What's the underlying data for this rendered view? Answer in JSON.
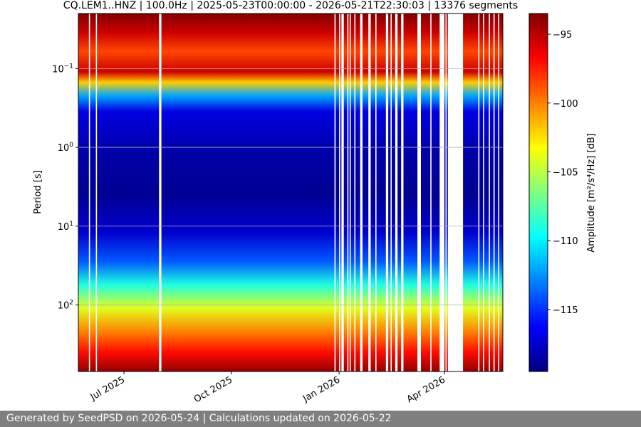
{
  "chart_data": {
    "type": "heatmap",
    "title": "CQ.LEM1..HNZ | 100.0Hz | 2025-05-23T00:00:00 - 2026-05-21T22:30:03 | 13376 segments",
    "ylabel": "Period [s]",
    "y_scale": "log",
    "y_inverted": true,
    "ylim": [
      0.02,
      700
    ],
    "y_ticks": [
      {
        "value": 0.1,
        "base": "10",
        "exp": "−1"
      },
      {
        "value": 1,
        "base": "10",
        "exp": "0"
      },
      {
        "value": 10,
        "base": "10",
        "exp": "1"
      },
      {
        "value": 100,
        "base": "10",
        "exp": "2"
      }
    ],
    "xlim": [
      "2025-05-23",
      "2026-05-21"
    ],
    "x_ticks": [
      {
        "date": "2025-07-01",
        "label": "Jul 2025"
      },
      {
        "date": "2025-10-01",
        "label": "Oct 2025"
      },
      {
        "date": "2026-01-01",
        "label": "Jan 2026"
      },
      {
        "date": "2026-04-01",
        "label": "Apr 2026"
      }
    ],
    "grid": true,
    "colorbar": {
      "label": "Amplitude [m²/s⁴/Hz] [dB]",
      "range": [
        -119.5,
        -93.5
      ],
      "colormap": "jet",
      "ticks": [
        {
          "value": -95,
          "label": "−95"
        },
        {
          "value": -100,
          "label": "−100"
        },
        {
          "value": -105,
          "label": "−105"
        },
        {
          "value": -110,
          "label": "−110"
        },
        {
          "value": -115,
          "label": "−115"
        }
      ]
    },
    "amplitude_profile": [
      {
        "period": 0.02,
        "db": -93.5
      },
      {
        "period": 0.035,
        "db": -95.5
      },
      {
        "period": 0.06,
        "db": -98.5
      },
      {
        "period": 0.11,
        "db": -95.5
      },
      {
        "period": 0.15,
        "db": -102
      },
      {
        "period": 0.22,
        "db": -112
      },
      {
        "period": 0.35,
        "db": -117
      },
      {
        "period": 1.2,
        "db": -118.5
      },
      {
        "period": 4,
        "db": -119
      },
      {
        "period": 12,
        "db": -117.5
      },
      {
        "period": 28,
        "db": -114
      },
      {
        "period": 55,
        "db": -109
      },
      {
        "period": 110,
        "db": -104
      },
      {
        "period": 220,
        "db": -100
      },
      {
        "period": 400,
        "db": -97
      },
      {
        "period": 700,
        "db": -94
      }
    ],
    "data_gaps": [
      {
        "start": "2025-06-01",
        "end": "2025-06-02"
      },
      {
        "start": "2025-06-07",
        "end": "2025-06-08"
      },
      {
        "start": "2025-07-31",
        "end": "2025-08-02"
      },
      {
        "start": "2025-12-28",
        "end": "2025-12-29"
      },
      {
        "start": "2026-01-01",
        "end": "2026-01-02"
      },
      {
        "start": "2026-01-03",
        "end": "2026-01-05"
      },
      {
        "start": "2026-01-08",
        "end": "2026-01-09"
      },
      {
        "start": "2026-01-10",
        "end": "2026-01-11"
      },
      {
        "start": "2026-01-14",
        "end": "2026-01-15"
      },
      {
        "start": "2026-01-19",
        "end": "2026-01-21"
      },
      {
        "start": "2026-01-26",
        "end": "2026-01-28"
      },
      {
        "start": "2026-02-01",
        "end": "2026-02-02"
      },
      {
        "start": "2026-02-10",
        "end": "2026-02-12"
      },
      {
        "start": "2026-02-14",
        "end": "2026-02-15"
      },
      {
        "start": "2026-02-18",
        "end": "2026-02-20"
      },
      {
        "start": "2026-02-23",
        "end": "2026-02-25"
      },
      {
        "start": "2026-03-09",
        "end": "2026-03-12"
      },
      {
        "start": "2026-03-20",
        "end": "2026-03-21"
      },
      {
        "start": "2026-03-28",
        "end": "2026-04-01"
      },
      {
        "start": "2026-04-02",
        "end": "2026-04-03"
      },
      {
        "start": "2026-04-04",
        "end": "2026-04-17"
      },
      {
        "start": "2026-04-30",
        "end": "2026-05-01"
      },
      {
        "start": "2026-05-04",
        "end": "2026-05-05"
      },
      {
        "start": "2026-05-09",
        "end": "2026-05-10"
      },
      {
        "start": "2026-05-13",
        "end": "2026-05-14"
      },
      {
        "start": "2026-05-17",
        "end": "2026-05-18"
      }
    ]
  },
  "footer": {
    "text": "Generated by SeedPSD on 2026-05-24 | Calculations updated on 2026-05-22"
  }
}
